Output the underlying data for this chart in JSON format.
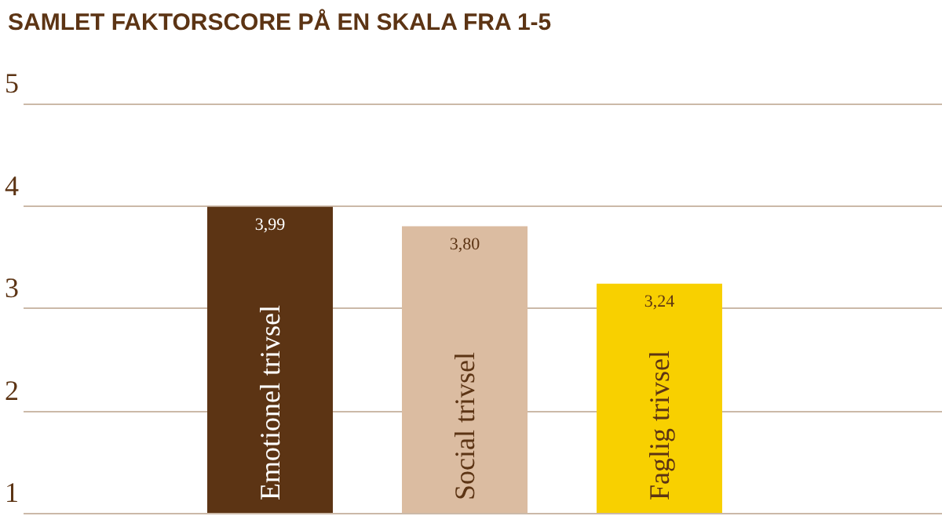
{
  "chart_data": {
    "type": "bar",
    "title": "SAMLET FAKTORSCORE PÅ EN SKALA FRA 1-5",
    "categories": [
      "Emotionel trivsel",
      "Social trivsel",
      "Faglig trivsel"
    ],
    "values": [
      3.99,
      3.8,
      3.24
    ],
    "value_labels": [
      "3,99",
      "3,80",
      "3,24"
    ],
    "colors": [
      "#5c3414",
      "#dbbca1",
      "#f8d000"
    ],
    "ylim": [
      1,
      5
    ],
    "yticks": [
      1,
      2,
      3,
      4,
      5
    ],
    "grid": "y"
  }
}
